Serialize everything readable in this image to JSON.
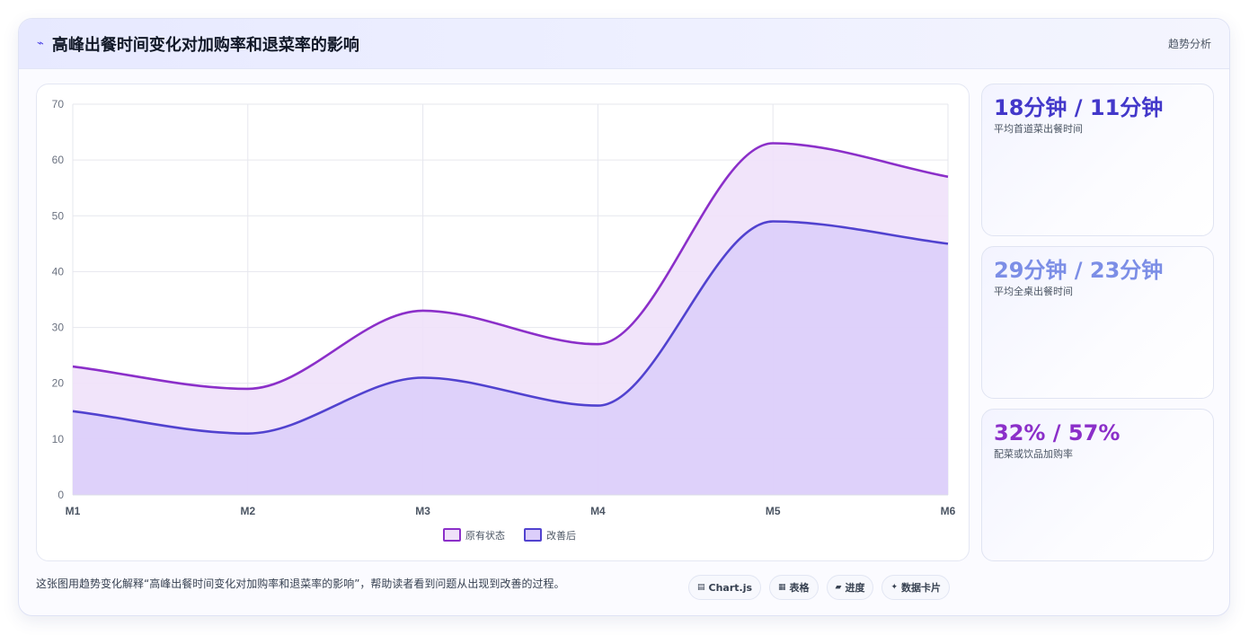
{
  "header": {
    "title": "高峰出餐时间变化对加购率和退菜率的影响",
    "tag": "趋势分析"
  },
  "stats": [
    {
      "value": "18分钟 / 11分钟",
      "label": "平均首道菜出餐时间",
      "color": "#4338ca"
    },
    {
      "value": "29分钟 / 23分钟",
      "label": "平均全桌出餐时间",
      "color": "#7c8ee6"
    },
    {
      "value": "32% / 57%",
      "label": "配菜或饮品加购率",
      "color": "#8b2fc9"
    }
  ],
  "footer": {
    "text": "这张图用趋势变化解释“高峰出餐时间变化对加购率和退菜率的影响”，帮助读者看到问题从出现到改善的过程。",
    "pills": [
      {
        "icon": "chart-icon",
        "label": "Chart.js"
      },
      {
        "icon": "table-icon",
        "label": "表格"
      },
      {
        "icon": "progress-icon",
        "label": "进度"
      },
      {
        "icon": "sparkle-icon",
        "label": "数据卡片"
      }
    ]
  },
  "chart_data": {
    "type": "area",
    "categories": [
      "M1",
      "M2",
      "M3",
      "M4",
      "M5",
      "M6"
    ],
    "ylim": [
      0,
      70
    ],
    "yticks": [
      "0",
      "10",
      "20",
      "30",
      "40",
      "50",
      "60",
      "70"
    ],
    "grid": true,
    "legend_position": "bottom",
    "series": [
      {
        "name": "原有状态",
        "values": [
          23,
          19,
          33,
          27,
          63,
          57
        ],
        "color": "#8b2fc9",
        "fill": "#efe1f9"
      },
      {
        "name": "改善后",
        "values": [
          15,
          11,
          21,
          16,
          49,
          45
        ],
        "color": "#5142cf",
        "fill": "#dccefa"
      }
    ]
  }
}
